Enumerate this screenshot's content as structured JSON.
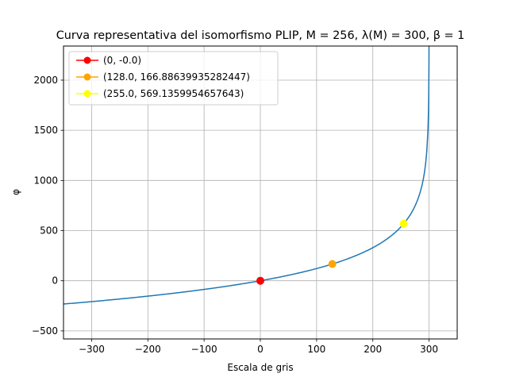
{
  "chart_data": {
    "type": "line",
    "title": "Curva representativa del isomorfismo PLIP, M = 256, λ(M) = 300, β = 1",
    "xlabel": "Escala de gris",
    "ylabel": "φ",
    "xlim": [
      -350,
      350
    ],
    "ylim": [
      -580,
      2340
    ],
    "xticks": [
      -300,
      -200,
      -100,
      0,
      100,
      200,
      300
    ],
    "yticks": [
      -500,
      0,
      500,
      1000,
      1500,
      2000
    ],
    "grid": true,
    "legend_position": "top-left",
    "curve": {
      "color": "#1f77b4",
      "lambda": 300,
      "x_range": [
        -350,
        299.9
      ]
    },
    "series": [
      {
        "name": "(0, -0.0)",
        "x": 0,
        "y": 0,
        "color": "#ff0000"
      },
      {
        "name": "(128.0, 166.88639935282447)",
        "x": 128.0,
        "y": 166.88639935282447,
        "color": "#ffa500"
      },
      {
        "name": "(255.0, 569.1359954657643)",
        "x": 255.0,
        "y": 569.1359954657643,
        "color": "#ffff00"
      }
    ]
  }
}
